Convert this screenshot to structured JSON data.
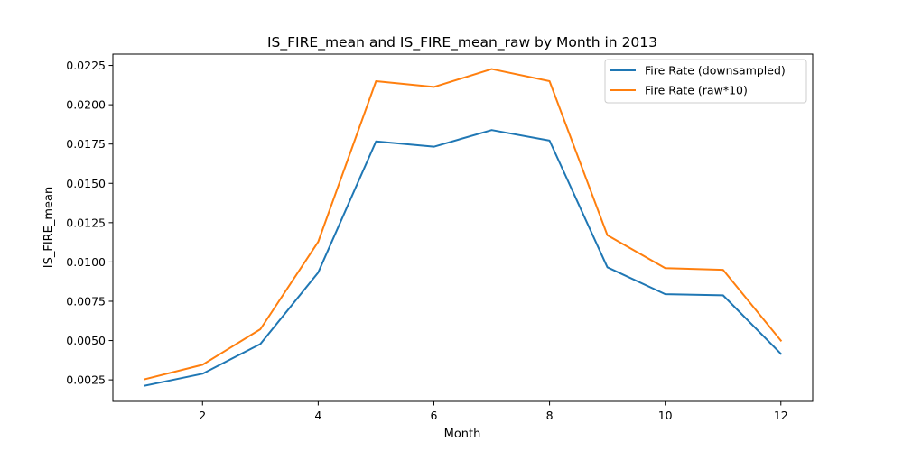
{
  "chart_data": {
    "type": "line",
    "title": "IS_FIRE_mean and IS_FIRE_mean_raw by Month in 2013",
    "xlabel": "Month",
    "ylabel": "IS_FIRE_mean",
    "xlim": [
      0.45,
      12.55
    ],
    "ylim": [
      0.00113,
      0.02322
    ],
    "x_ticks": [
      2,
      4,
      6,
      8,
      10,
      12
    ],
    "y_ticks": [
      0.0025,
      0.005,
      0.0075,
      0.01,
      0.0125,
      0.015,
      0.0175,
      0.02,
      0.0225
    ],
    "y_tick_labels": [
      "0.0025",
      "0.0050",
      "0.0075",
      "0.0100",
      "0.0125",
      "0.0150",
      "0.0175",
      "0.0200",
      "0.0225"
    ],
    "grid": false,
    "legend_position": "top-right",
    "x": [
      1,
      2,
      3,
      4,
      5,
      6,
      7,
      8,
      9,
      10,
      11,
      12
    ],
    "series": [
      {
        "name": "Fire Rate (downsampled)",
        "color": "#1f77b4",
        "values": [
          0.00213,
          0.00289,
          0.00478,
          0.00933,
          0.01767,
          0.01733,
          0.01839,
          0.01772,
          0.00966,
          0.00795,
          0.00788,
          0.00416
        ]
      },
      {
        "name": "Fire Rate (raw*10)",
        "color": "#ff7f0e",
        "values": [
          0.00254,
          0.00346,
          0.00572,
          0.01128,
          0.0215,
          0.02113,
          0.02227,
          0.0215,
          0.0117,
          0.00961,
          0.0095,
          0.005
        ]
      }
    ]
  }
}
